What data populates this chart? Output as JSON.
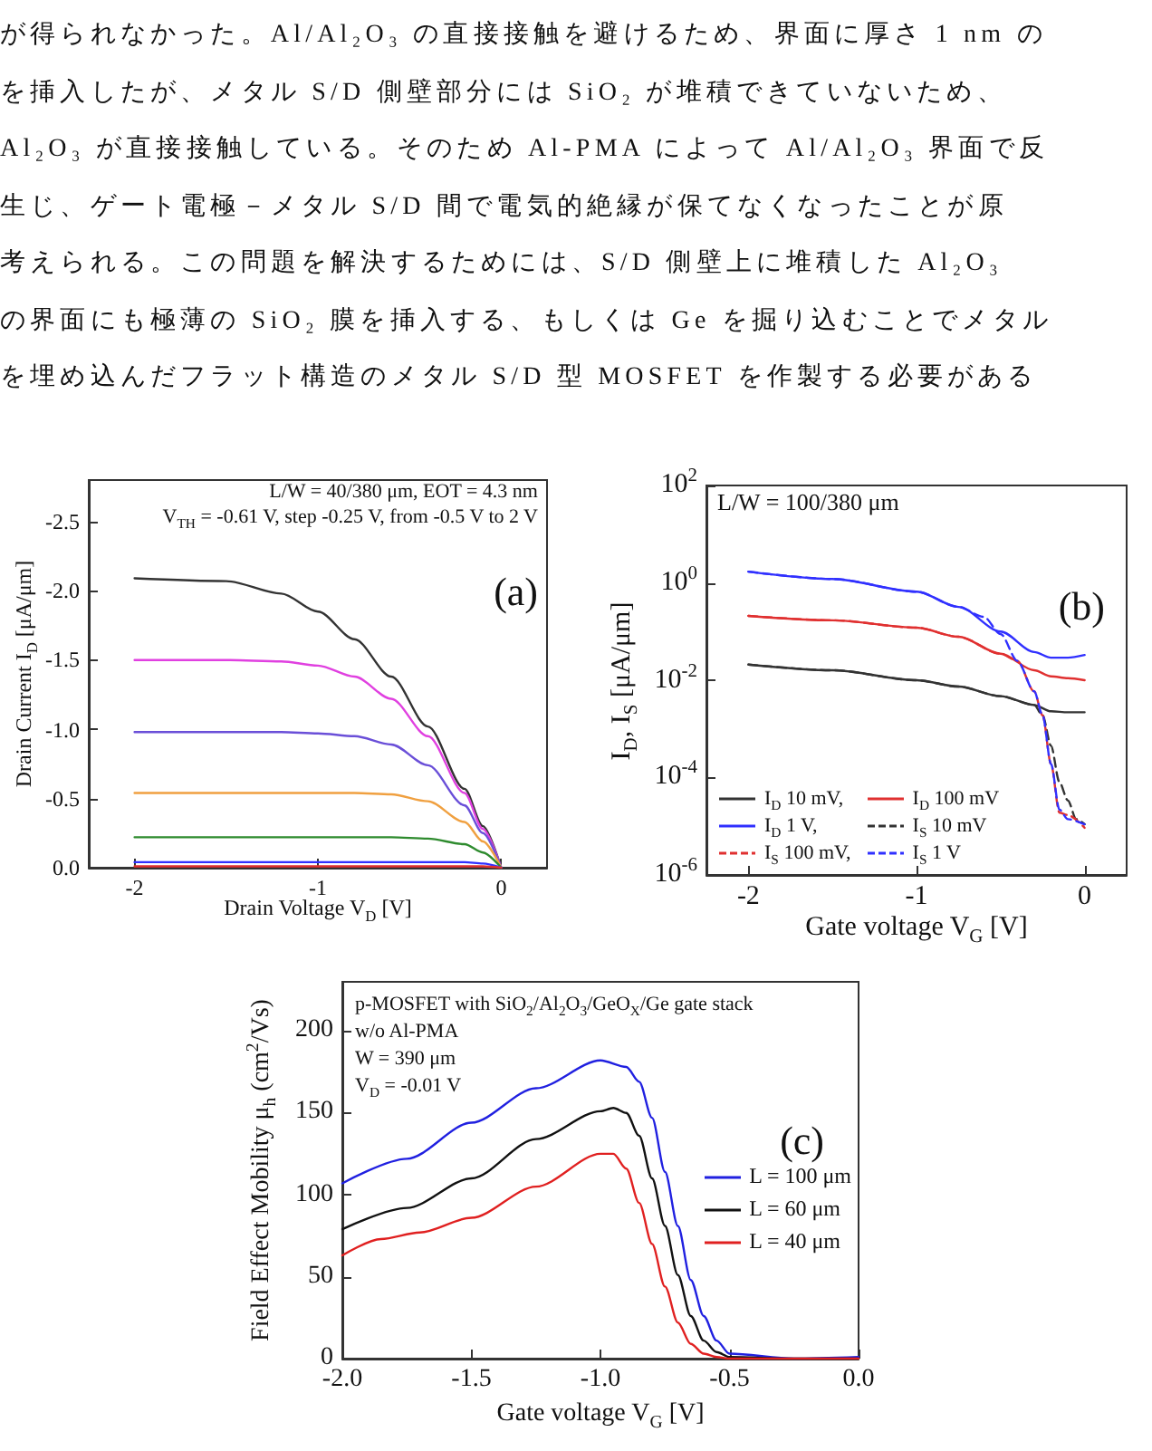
{
  "chart_data": [
    {
      "type": "other",
      "annotations": [
        "が得られなかった。Al/Al₂O₃ の直接接触を避けるため、界面に厚さ 1 nm の",
        "を挿入したが、メタル S/D 側壁部分には SiO₂ が堆積できていないため、",
        "Al₂O₃ が直接接触している。そのため Al-PMA によって Al/Al₂O₃ 界面で反",
        "生じ、ゲート電極－メタル S/D 間で電気的絶縁が保てなくなったことが原",
        "考えられる。この問題を解決するためには、S/D 側壁上に堆積した Al₂O₃",
        "の界面にも極薄の SiO₂ 膜を挿入する、もしくは Ge を掘り込むことでメタル",
        "を埋め込んだフラット構造のメタル S/D 型 MOSFET を作製する必要がある"
      ]
    },
    {
      "type": "line",
      "xlabel": "Drain Voltage V$_{D}$ [V]",
      "ylabel": "Drain Current I$_{D}$ [μA/μm]",
      "annotations": [
        "L/W = 40/380 μm, EOT = 4.3 nm",
        "V$_{TH}$ = -0.61 V, step -0.25 V, from -0.5 V to 2 V",
        "(a)"
      ],
      "x": [
        -2,
        -1.5,
        -1.2,
        -1,
        -0.8,
        -0.6,
        -0.4,
        -0.2,
        -0.1,
        0
      ],
      "xlim": [
        -2.25,
        0.25
      ],
      "xticks": [
        -2,
        -1,
        0
      ],
      "ylim": [
        0,
        -2.8
      ],
      "yticks": [
        -2.5,
        {
          "value": -2,
          "label": "-2.0"
        },
        -1.5,
        {
          "value": -1,
          "label": "-1.0"
        },
        -0.5,
        {
          "value": 0,
          "label": "0.0"
        }
      ],
      "grid": false,
      "legend": false,
      "marker": "none",
      "line_style": "solid",
      "series": [
        {
          "color": "#333333",
          "values": [
            -2.09,
            -2.07,
            -1.98,
            -1.85,
            -1.65,
            -1.38,
            -1.02,
            -0.57,
            -0.3,
            0
          ]
        },
        {
          "color": "#e040e0",
          "values": [
            -1.5,
            -1.5,
            -1.49,
            -1.46,
            -1.38,
            -1.22,
            -0.95,
            -0.54,
            -0.28,
            0
          ]
        },
        {
          "color": "#6a4fd8",
          "values": [
            -0.98,
            -0.98,
            -0.98,
            -0.97,
            -0.95,
            -0.89,
            -0.74,
            -0.45,
            -0.25,
            0
          ]
        },
        {
          "color": "#f0a040",
          "values": [
            -0.54,
            -0.54,
            -0.54,
            -0.54,
            -0.54,
            -0.53,
            -0.48,
            -0.33,
            -0.19,
            0
          ]
        },
        {
          "color": "#2e8b2e",
          "values": [
            -0.22,
            -0.22,
            -0.22,
            -0.22,
            -0.22,
            -0.22,
            -0.21,
            -0.17,
            -0.11,
            0
          ]
        },
        {
          "color": "#3030ff",
          "values": [
            -0.04,
            -0.04,
            -0.04,
            -0.04,
            -0.04,
            -0.04,
            -0.04,
            -0.04,
            -0.03,
            0
          ]
        },
        {
          "color": "#e03030",
          "values": [
            -0.01,
            -0.01,
            -0.01,
            -0.01,
            -0.01,
            -0.01,
            -0.01,
            -0.01,
            -0.01,
            0
          ]
        }
      ]
    },
    {
      "type": "line",
      "xlabel": "Gate voltage V$_{G}$ [V]",
      "ylabel": "I$_{D}$, I$_{S}$ [μA/μm]",
      "annotations": [
        "L/W = 100/380 μm",
        "(b)"
      ],
      "log": "y",
      "xlim": [
        -2.25,
        0.25
      ],
      "xticks": [
        -2,
        -1,
        0
      ],
      "ylim": [
        1e-06,
        100
      ],
      "yticks": [
        {
          "value": 1e-06,
          "label": "10$^{-6}$"
        },
        {
          "value": 0.0001,
          "label": "10$^{-4}$"
        },
        {
          "value": 0.01,
          "label": "10$^{-2}$"
        },
        {
          "value": 1,
          "label": "10$^{0}$"
        },
        {
          "value": 100,
          "label": "10$^{2}$"
        }
      ],
      "grid": false,
      "legend": "bottom left",
      "marker": "none",
      "series": [
        {
          "name": "I$_{D}$ 10 mV,",
          "color": "#333333",
          "line_style": "solid",
          "x": [
            -2,
            -1.5,
            -1,
            -0.75,
            -0.5,
            -0.3,
            -0.2,
            -0.1,
            0
          ],
          "values": [
            0.021,
            0.016,
            0.01,
            0.0074,
            0.0047,
            0.0031,
            0.0023,
            0.0022,
            0.0022
          ]
        },
        {
          "name": "I$_{D}$ 100 mV",
          "color": "#e03030",
          "line_style": "solid",
          "x": [
            -2,
            -1.5,
            -1,
            -0.75,
            -0.5,
            -0.3,
            -0.2,
            -0.1,
            0
          ],
          "values": [
            0.21,
            0.17,
            0.12,
            0.078,
            0.035,
            0.016,
            0.012,
            0.011,
            0.01
          ]
        },
        {
          "name": "I$_{D}$ 1 V,",
          "color": "#3030ff",
          "line_style": "solid",
          "x": [
            -2,
            -1.5,
            -1,
            -0.75,
            -0.5,
            -0.3,
            -0.2,
            -0.1,
            0
          ],
          "values": [
            1.7,
            1.2,
            0.66,
            0.32,
            0.1,
            0.038,
            0.029,
            0.029,
            0.033
          ]
        },
        {
          "name": "I$_{S}$ 10 mV",
          "color": "#333333",
          "line_style": "dashed",
          "x": [
            -2,
            -1.5,
            -1,
            -0.75,
            -0.5,
            -0.3,
            -0.25,
            -0.2,
            -0.15,
            -0.1,
            -0.05,
            0
          ],
          "values": [
            0.021,
            0.016,
            0.01,
            0.0074,
            0.0047,
            0.0031,
            0.0019,
            0.00045,
            8.1e-05,
            3.4e-05,
            1.4e-05,
            1.1e-05
          ]
        },
        {
          "name": "I$_{S}$ 100 mV,",
          "color": "#e03030",
          "line_style": "dashed",
          "x": [
            -2,
            -1.5,
            -1,
            -0.75,
            -0.5,
            -0.4,
            -0.3,
            -0.25,
            -0.2,
            -0.15,
            -0.1,
            0
          ],
          "values": [
            0.21,
            0.17,
            0.12,
            0.078,
            0.035,
            0.025,
            0.0059,
            0.0019,
            0.00019,
            1.9e-05,
            1.7e-05,
            9.3e-06
          ]
        },
        {
          "name": "I$_{S}$ 1 V",
          "color": "#3030ff",
          "line_style": "dashed",
          "x": [
            -2,
            -1.5,
            -1,
            -0.75,
            -0.6,
            -0.5,
            -0.4,
            -0.3,
            -0.25,
            -0.2,
            -0.15,
            -0.1,
            0
          ],
          "values": [
            1.7,
            1.2,
            0.66,
            0.32,
            0.2,
            0.089,
            0.025,
            0.0059,
            0.0019,
            0.00019,
            2.2e-05,
            1.4e-05,
            1.1e-05
          ]
        }
      ]
    },
    {
      "type": "line",
      "xlabel": "Gate voltage V$_{G}$ [V]",
      "ylabel": "Field Effect Mobility μ$_{h}$ (cm$^{2}$/Vs)",
      "annotations": [
        "p-MOSFET with SiO$_{2}$/Al$_{2}$O$_{3}$/GeO$_{X}$/Ge gate stack",
        "w/o Al-PMA",
        "W = 390 μm",
        "V$_{D}$ = -0.01 V",
        "(c)"
      ],
      "xlim": [
        -2,
        0
      ],
      "xticks": [
        {
          "value": -2,
          "label": "-2.0"
        },
        -1.5,
        {
          "value": -1,
          "label": "-1.0"
        },
        -0.5,
        {
          "value": 0,
          "label": "0.0"
        }
      ],
      "ylim": [
        0,
        230
      ],
      "yticks": [
        0,
        50,
        100,
        150,
        200
      ],
      "grid": false,
      "legend": "right",
      "marker": "none",
      "line_style": "solid",
      "series": [
        {
          "name": "L = 100 μm",
          "color": "#2020e0",
          "x": [
            -2,
            -1.75,
            -1.5,
            -1.25,
            -1,
            -0.9,
            -0.85,
            -0.8,
            -0.75,
            -0.7,
            -0.65,
            -0.6,
            -0.55,
            -0.5,
            -0.25,
            0
          ],
          "values": [
            107,
            122,
            144,
            165,
            182,
            178,
            169,
            147,
            114,
            81,
            48,
            26,
            11,
            3,
            0,
            1
          ]
        },
        {
          "name": "L = 60 μm",
          "color": "#111111",
          "x": [
            -2,
            -1.75,
            -1.5,
            -1.25,
            -1,
            -0.95,
            -0.9,
            -0.85,
            -0.8,
            -0.75,
            -0.7,
            -0.65,
            -0.6,
            -0.55,
            -0.5,
            -0.25,
            0
          ],
          "values": [
            79,
            92,
            110,
            134,
            151,
            153,
            150,
            136,
            110,
            81,
            51,
            26,
            11,
            4,
            1,
            0,
            0
          ]
        },
        {
          "name": "L = 40 μm",
          "color": "#e02020",
          "x": [
            -2,
            -1.85,
            -1.7,
            -1.5,
            -1.25,
            -1,
            -0.95,
            -0.9,
            -0.85,
            -0.8,
            -0.75,
            -0.7,
            -0.65,
            -0.6,
            -0.55,
            -0.5,
            0
          ],
          "values": [
            63,
            73,
            77,
            86,
            105,
            125,
            125,
            116,
            95,
            70,
            44,
            22,
            9,
            3,
            1,
            0,
            0
          ]
        }
      ]
    }
  ]
}
